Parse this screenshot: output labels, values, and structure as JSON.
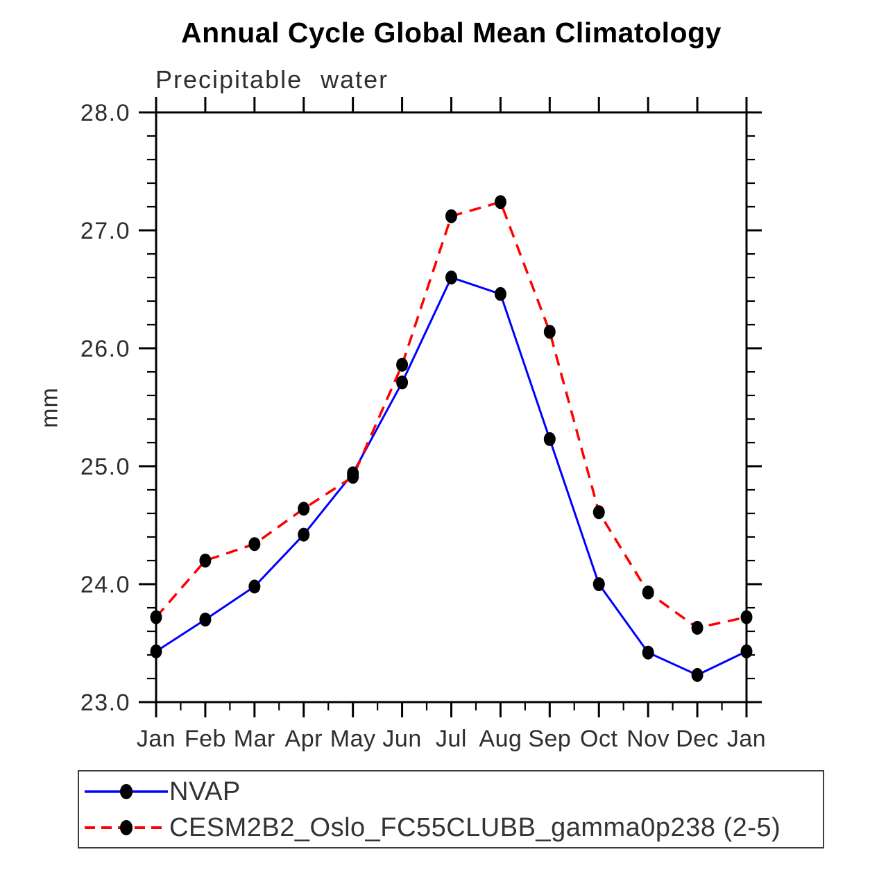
{
  "chart_data": {
    "type": "line",
    "title": "Annual Cycle Global Mean Climatology",
    "subtitle": "Precipitable water",
    "ylabel": "mm",
    "xlabel": "",
    "categories": [
      "Jan",
      "Feb",
      "Mar",
      "Apr",
      "May",
      "Jun",
      "Jul",
      "Aug",
      "Sep",
      "Oct",
      "Nov",
      "Dec",
      "Jan"
    ],
    "ylim": [
      23.0,
      28.0
    ],
    "ytick_step": 1.0,
    "yminor_step": 0.2,
    "ytick_labels": [
      "23.0",
      "24.0",
      "25.0",
      "26.0",
      "27.0",
      "28.0"
    ],
    "grid": false,
    "legend_position": "bottom",
    "series": [
      {
        "name": "NVAP",
        "color": "#0000ff",
        "line_style": "solid",
        "marker": "filled-circle",
        "marker_color": "#000000",
        "values": [
          23.43,
          23.7,
          23.98,
          24.42,
          24.94,
          25.71,
          26.6,
          26.46,
          25.23,
          24.0,
          23.42,
          23.23,
          23.43
        ]
      },
      {
        "name": "CESM2B2_Oslo_FC55CLUBB_gamma0p238 (2-5)",
        "color": "#ff0000",
        "line_style": "dashed",
        "marker": "filled-circle",
        "marker_color": "#000000",
        "values": [
          23.72,
          24.2,
          24.34,
          24.64,
          24.91,
          25.86,
          27.12,
          27.24,
          26.14,
          24.61,
          23.93,
          23.63,
          23.72
        ]
      }
    ],
    "axis_color": "#000000",
    "background_color": "#ffffff"
  }
}
